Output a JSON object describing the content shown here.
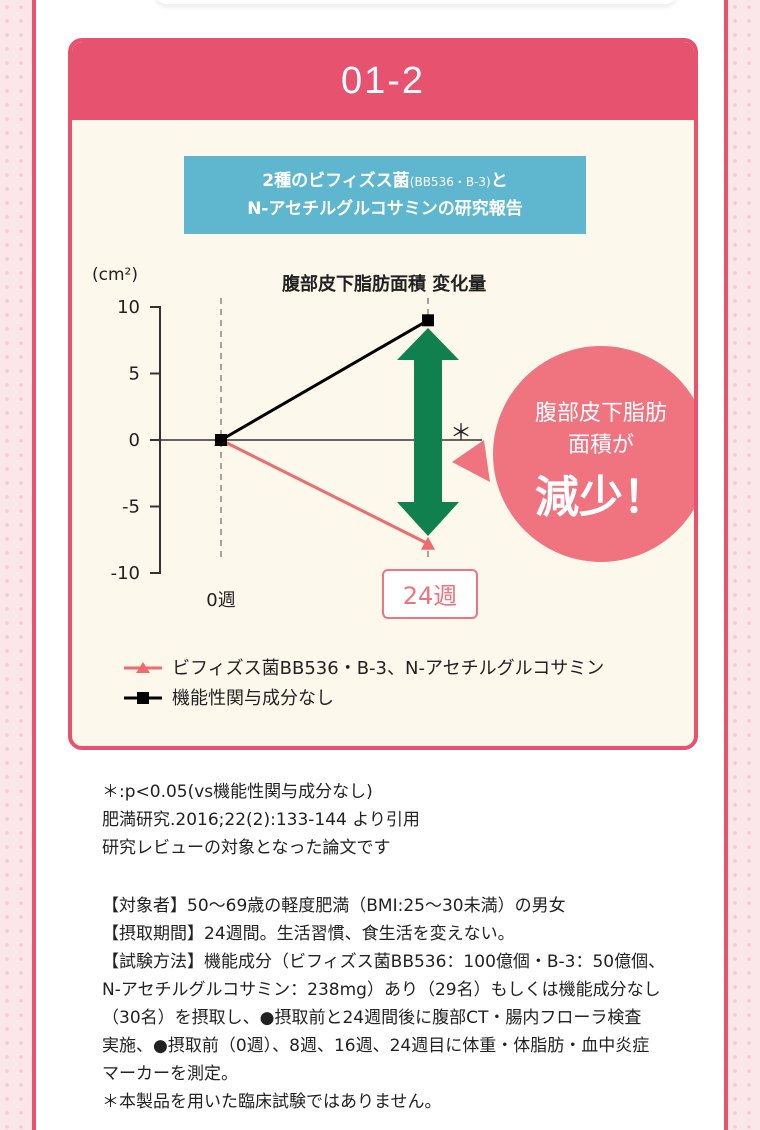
{
  "card": {
    "header": "01-2",
    "subtitle_line1": "2種のビフィズス菌",
    "subtitle_small": "(BB536・B-3)",
    "subtitle_line1_end": "と",
    "subtitle_line2": "N-アセチルグルコサミンの研究報告"
  },
  "chart_data": {
    "type": "line",
    "title": "腹部皮下脂肪面積  変化量",
    "ylabel": "(cm²)",
    "ylim": [
      -10,
      10
    ],
    "yticks": [
      "10",
      "5",
      "0",
      "-5",
      "-10"
    ],
    "x_labels": [
      "0週",
      "24週"
    ],
    "series": [
      {
        "name": "ビフィズス菌BB536・B-3、N-アセチルグルコサミン",
        "values": [
          0,
          -7.8
        ],
        "color": "#f06a6e",
        "marker": "triangle"
      },
      {
        "name": "機能性関与成分なし",
        "values": [
          0,
          9
        ],
        "color": "#000000",
        "marker": "square"
      }
    ],
    "significance": "＊",
    "callout": {
      "line1": "腹部皮下脂肪",
      "line2": "面積が",
      "line3": "減少！"
    },
    "arrow_color": "#10804f",
    "callout_color": "#f0747f"
  },
  "notes": {
    "line1": "＊:p<0.05(vs機能性関与成分なし)",
    "line2": "肥満研究.2016;22(2):133-144 より引用",
    "line3": "研究レビューの対象となった論文です",
    "target": "【対象者】50～69歳の軽度肥満（BMI:25～30未満）の男女",
    "period": "【摂取期間】24週間。生活習慣、食生活を変えない。",
    "method1": "【試験方法】機能成分（ビフィズス菌BB536：100億個・B-3：50億個、",
    "method2": "N-アセチルグルコサミン：238mg）あり（29名）もしくは機能成分なし",
    "method3": "（30名）を摂取し、●摂取前と24週間後に腹部CT・腸内フローラ検査",
    "method4": "実施、●摂取前（0週）、8週、16週、24週目に体重・体脂肪・血中炎症",
    "method5": "マーカーを測定。",
    "disclaimer": "＊本製品を用いた臨床試験ではありません。"
  }
}
